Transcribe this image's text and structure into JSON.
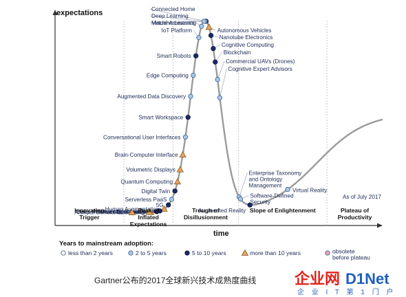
{
  "chart_data": {
    "type": "hype-cycle",
    "ylabel": "expectations",
    "xlabel": "time",
    "date_note": "As of July 2017",
    "phases": [
      "Innovation\nTrigger",
      "Peak of\nInflated\nExpectations",
      "Trough of\nDisillusionment",
      "Slope of Enlightenment",
      "Plateau of\nProductivity"
    ],
    "legend": {
      "title": "Years to mainstream adoption:",
      "items": [
        {
          "label": "less than 2 years",
          "marker": "white-circle"
        },
        {
          "label": "2 to 5 years",
          "marker": "lightblue-circle"
        },
        {
          "label": "5 to 10 years",
          "marker": "navy-circle"
        },
        {
          "label": "more than 10 years",
          "marker": "orange-triangle"
        },
        {
          "label": "obsolete\nbefore plateau",
          "marker": "pink-circle"
        }
      ]
    },
    "technologies": [
      {
        "name": "Connected Home",
        "t": 0.461,
        "adoption": "5-10",
        "side": "right"
      },
      {
        "name": "Deep Learning",
        "t": 0.458,
        "adoption": "2-5",
        "side": "right"
      },
      {
        "name": "Machine Learning",
        "t": 0.455,
        "adoption": "2-5",
        "side": "right"
      },
      {
        "name": "Autonomous Vehicles",
        "t": 0.47,
        "adoption": ">10",
        "side": "right"
      },
      {
        "name": "Nanotube Electronics",
        "t": 0.476,
        "adoption": "5-10",
        "side": "right"
      },
      {
        "name": "Cognitive Computing",
        "t": 0.483,
        "adoption": "5-10",
        "side": "right"
      },
      {
        "name": "Blockchain",
        "t": 0.489,
        "adoption": "5-10",
        "side": "right"
      },
      {
        "name": "Commercial UAVs (Drones)",
        "t": 0.496,
        "adoption": "2-5",
        "side": "right"
      },
      {
        "name": "Cognitive Expert Advisors",
        "t": 0.503,
        "adoption": "2-5",
        "side": "right"
      },
      {
        "name": "Virtual Assistants",
        "t": 0.447,
        "adoption": "2-5",
        "side": "left"
      },
      {
        "name": "IoT Platform",
        "t": 0.439,
        "adoption": "2-5",
        "side": "left"
      },
      {
        "name": "Smart Robots",
        "t": 0.43,
        "adoption": "5-10",
        "side": "left"
      },
      {
        "name": "Edge Computing",
        "t": 0.422,
        "adoption": "2-5",
        "side": "left"
      },
      {
        "name": "Augmented Data Discovery",
        "t": 0.414,
        "adoption": "2-5",
        "side": "left"
      },
      {
        "name": "Smart Workspace",
        "t": 0.406,
        "adoption": "5-10",
        "side": "left"
      },
      {
        "name": "Conversational User Interfaces",
        "t": 0.398,
        "adoption": "2-5",
        "side": "left"
      },
      {
        "name": "Brain-Computer Interface",
        "t": 0.39,
        "adoption": ">10",
        "side": "left"
      },
      {
        "name": "Volumetric Displays",
        "t": 0.382,
        "adoption": ">10",
        "side": "left"
      },
      {
        "name": "Quantum Computing",
        "t": 0.374,
        "adoption": ">10",
        "side": "left"
      },
      {
        "name": "Digital Twin",
        "t": 0.366,
        "adoption": "5-10",
        "side": "left"
      },
      {
        "name": "Serverless PaaS",
        "t": 0.356,
        "adoption": "2-5",
        "side": "left"
      },
      {
        "name": "5G",
        "t": 0.346,
        "adoption": "5-10",
        "side": "left"
      },
      {
        "name": "Human Augmentation",
        "t": 0.333,
        "adoption": ">10",
        "side": "left"
      },
      {
        "name": "Neuromorphic Hardware",
        "t": 0.32,
        "adoption": "5-10",
        "side": "left"
      },
      {
        "name": "Deep Reinforcement Learning",
        "t": 0.31,
        "adoption": "5-10",
        "side": "left"
      },
      {
        "name": "Artificial General Intelligence",
        "t": 0.292,
        "adoption": ">10",
        "side": "left"
      },
      {
        "name": "4D Printing",
        "t": 0.288,
        "adoption": ">10",
        "side": "left"
      },
      {
        "name": "Smart Dust",
        "t": 0.235,
        "adoption": ">10",
        "side": "left"
      },
      {
        "name": "Enterprise Taxonomy\nand Ontology\nManagement",
        "t": 0.562,
        "adoption": "2-5",
        "side": "right"
      },
      {
        "name": "Software-Defined\nSecurity",
        "t": 0.566,
        "adoption": "2-5",
        "side": "right"
      },
      {
        "name": "Augmented Reality",
        "t": 0.595,
        "adoption": "5-10",
        "side": "left"
      },
      {
        "name": "Virtual Reality",
        "t": 0.71,
        "adoption": "2-5",
        "side": "right"
      }
    ]
  },
  "caption": "Gartner公布的2017全球新兴技术成熟度曲线",
  "watermark": {
    "brand_red": "企业网",
    "brand_blue": "D1Net",
    "sub": "企 业 I T 第 1 门 户",
    "red": "#e2231a",
    "blue": "#1f5fbf"
  },
  "colors": {
    "curve": "#9a9a9a",
    "label": "#1b2a55",
    "white_marker": "#ffffff",
    "lightblue_marker": "#a9c8e8",
    "navy_marker": "#1b2a6b",
    "orange_marker": "#e6a35c",
    "pink_marker": "#e9a3b3"
  }
}
